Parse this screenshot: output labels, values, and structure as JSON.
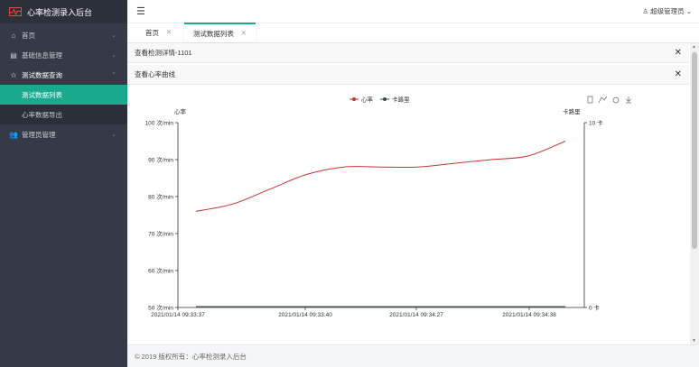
{
  "app": {
    "title": "心率检测录入后台"
  },
  "sidebar": {
    "items": [
      {
        "label": "首页",
        "icon": "home-icon"
      },
      {
        "label": "基础信息管理",
        "icon": "list-icon"
      },
      {
        "label": "测试数据查询",
        "icon": "star-icon"
      },
      {
        "label": "管理员管理",
        "icon": "users-icon"
      }
    ],
    "submenu": [
      {
        "label": "测试数据列表"
      },
      {
        "label": "心率数据导出"
      }
    ]
  },
  "topbar": {
    "user": "超级管理员"
  },
  "tabs": [
    {
      "label": "首页"
    },
    {
      "label": "测试数据列表"
    }
  ],
  "panels": {
    "detail_title": "查看检测详情-1101",
    "curve_title": "查看心率曲线"
  },
  "footer": {
    "text": "© 2019 版权所有：心率检测录入后台"
  },
  "colors": {
    "accent": "#19aa8d",
    "sidebar": "#353b46",
    "heart_line": "#c23531",
    "step_line": "#2f4554"
  },
  "chart_data": {
    "type": "line",
    "legend": [
      "心率",
      "卡路里"
    ],
    "left_axis": {
      "name": "心率",
      "min": 50,
      "max": 100,
      "ticks": [
        "100 次/min",
        "90 次/min",
        "80 次/min",
        "70 次/min",
        "60 次/min",
        "50 次/min"
      ]
    },
    "right_axis": {
      "name": "卡路里",
      "min": 0,
      "max": 10,
      "ticks": [
        "10 卡",
        "0 卡"
      ]
    },
    "x_labels": [
      "2021/01/14 09:33:37",
      "2021/01/14 09:33:40",
      "2021/01/14 09:34:27",
      "2021/01/14 09:34:38"
    ],
    "series": [
      {
        "name": "心率",
        "values": [
          76,
          78,
          82,
          86,
          88,
          88,
          88,
          89,
          90,
          91,
          95
        ]
      },
      {
        "name": "卡路里",
        "values": [
          0,
          0,
          0,
          0,
          0,
          0,
          0,
          0,
          0,
          0,
          0
        ]
      }
    ]
  }
}
